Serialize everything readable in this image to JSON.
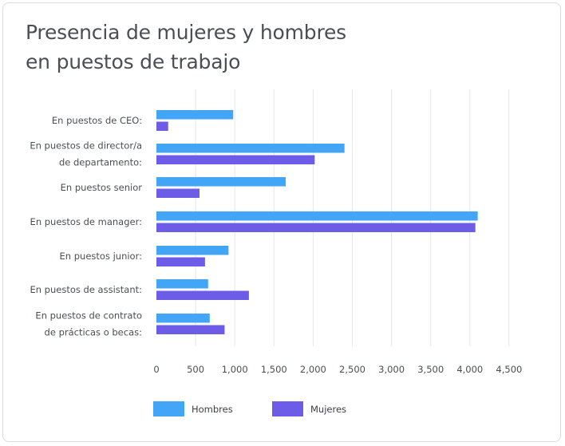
{
  "chart_data": {
    "type": "bar",
    "orientation": "horizontal",
    "title_lines": [
      "Presencia de mujeres y hombres",
      "en puestos de trabajo"
    ],
    "categories": [
      [
        "En puestos de CEO:"
      ],
      [
        "En puestos de director/a",
        "de departamento:"
      ],
      [
        "En puestos senior"
      ],
      [
        "En puestos de manager:"
      ],
      [
        "En puestos junior:"
      ],
      [
        "En puestos de assistant:"
      ],
      [
        "En puestos de contrato",
        "de prácticas o becas:"
      ]
    ],
    "series": [
      {
        "name": "Hombres",
        "color": "#42a5f5",
        "values": [
          980,
          2400,
          1650,
          4100,
          920,
          660,
          680
        ]
      },
      {
        "name": "Mujeres",
        "color": "#6c5ce7",
        "values": [
          150,
          2020,
          550,
          4070,
          620,
          1180,
          870
        ]
      }
    ],
    "xlim": [
      0,
      4500
    ],
    "xticks": [
      0,
      500,
      1000,
      1500,
      2000,
      2500,
      3000,
      3500,
      4000,
      4500
    ],
    "xtick_labels": [
      "0",
      "500",
      "1,000",
      "1,500",
      "2,000",
      "2,500",
      "3,000",
      "3,500",
      "4,000",
      "4,500"
    ],
    "grid": true,
    "legend_position": "bottom"
  }
}
